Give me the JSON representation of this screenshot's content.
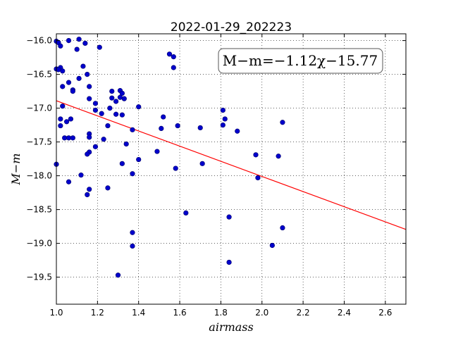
{
  "chart_data": {
    "type": "scatter",
    "title": "2022-01-29_202223",
    "xlabel": "airmass",
    "ylabel": "M−m",
    "xlim": [
      1.0,
      2.7
    ],
    "ylim": [
      -15.9,
      -19.9
    ],
    "y_inverted": true,
    "grid": true,
    "grid_style": "dotted",
    "x_ticks": [
      "1.0",
      "1.2",
      "1.4",
      "1.6",
      "1.8",
      "2.0",
      "2.2",
      "2.4",
      "2.6"
    ],
    "x_tick_values": [
      1.0,
      1.2,
      1.4,
      1.6,
      1.8,
      2.0,
      2.2,
      2.4,
      2.6
    ],
    "y_ticks": [
      "−16.0",
      "−16.5",
      "−17.0",
      "−17.5",
      "−18.0",
      "−18.5",
      "−19.0",
      "−19.5"
    ],
    "y_tick_values": [
      -16.0,
      -16.5,
      -17.0,
      -17.5,
      -18.0,
      -18.5,
      -19.0,
      -19.5
    ],
    "annotation": "M−m=−1.12χ−15.77",
    "fit_line": {
      "slope": -1.12,
      "intercept": -15.77,
      "color": "#ff0000"
    },
    "point_color": "#0000cc",
    "points": [
      [
        1.0,
        -16.01
      ],
      [
        1.01,
        -16.03
      ],
      [
        1.02,
        -16.08
      ],
      [
        1.06,
        -16.0
      ],
      [
        1.11,
        -15.98
      ],
      [
        1.14,
        -16.04
      ],
      [
        1.21,
        -16.1
      ],
      [
        1.1,
        -16.13
      ],
      [
        1.0,
        -16.42
      ],
      [
        1.02,
        -16.4
      ],
      [
        1.03,
        -16.45
      ],
      [
        1.01,
        -16.43
      ],
      [
        1.13,
        -16.38
      ],
      [
        1.15,
        -16.5
      ],
      [
        1.11,
        -16.56
      ],
      [
        1.06,
        -16.62
      ],
      [
        1.03,
        -16.68
      ],
      [
        1.16,
        -16.68
      ],
      [
        1.08,
        -16.73
      ],
      [
        1.08,
        -16.75
      ],
      [
        1.27,
        -16.75
      ],
      [
        1.31,
        -16.74
      ],
      [
        1.32,
        -16.78
      ],
      [
        1.16,
        -16.86
      ],
      [
        1.27,
        -16.85
      ],
      [
        1.31,
        -16.84
      ],
      [
        1.33,
        -16.86
      ],
      [
        1.29,
        -16.9
      ],
      [
        1.19,
        -16.93
      ],
      [
        1.03,
        -16.97
      ],
      [
        1.4,
        -16.98
      ],
      [
        1.26,
        -17.0
      ],
      [
        1.19,
        -17.03
      ],
      [
        1.22,
        -17.08
      ],
      [
        1.29,
        -17.09
      ],
      [
        1.32,
        -17.1
      ],
      [
        1.52,
        -17.13
      ],
      [
        1.02,
        -17.16
      ],
      [
        1.07,
        -17.16
      ],
      [
        1.05,
        -17.2
      ],
      [
        1.02,
        -17.26
      ],
      [
        1.25,
        -17.26
      ],
      [
        1.37,
        -17.32
      ],
      [
        1.51,
        -17.3
      ],
      [
        1.59,
        -17.26
      ],
      [
        1.7,
        -17.29
      ],
      [
        1.81,
        -17.03
      ],
      [
        1.82,
        -17.16
      ],
      [
        1.81,
        -17.25
      ],
      [
        1.88,
        -17.34
      ],
      [
        2.1,
        -17.21
      ],
      [
        1.55,
        -16.2
      ],
      [
        1.57,
        -16.24
      ],
      [
        1.57,
        -16.4
      ],
      [
        1.16,
        -17.38
      ],
      [
        1.04,
        -17.44
      ],
      [
        1.06,
        -17.44
      ],
      [
        1.08,
        -17.44
      ],
      [
        1.16,
        -17.43
      ],
      [
        1.23,
        -17.46
      ],
      [
        1.34,
        -17.53
      ],
      [
        1.19,
        -17.57
      ],
      [
        1.49,
        -17.64
      ],
      [
        1.16,
        -17.65
      ],
      [
        1.15,
        -17.68
      ],
      [
        1.4,
        -17.76
      ],
      [
        1.32,
        -17.82
      ],
      [
        1.71,
        -17.82
      ],
      [
        1.0,
        -17.83
      ],
      [
        1.58,
        -17.89
      ],
      [
        1.97,
        -17.69
      ],
      [
        2.08,
        -17.71
      ],
      [
        1.37,
        -17.97
      ],
      [
        1.12,
        -17.99
      ],
      [
        1.98,
        -18.03
      ],
      [
        1.06,
        -18.09
      ],
      [
        1.16,
        -18.2
      ],
      [
        1.25,
        -18.18
      ],
      [
        1.15,
        -18.28
      ],
      [
        1.63,
        -18.55
      ],
      [
        1.84,
        -18.61
      ],
      [
        2.1,
        -18.77
      ],
      [
        1.37,
        -18.84
      ],
      [
        2.05,
        -19.03
      ],
      [
        1.37,
        -19.04
      ],
      [
        1.84,
        -19.28
      ],
      [
        1.3,
        -19.47
      ]
    ]
  }
}
